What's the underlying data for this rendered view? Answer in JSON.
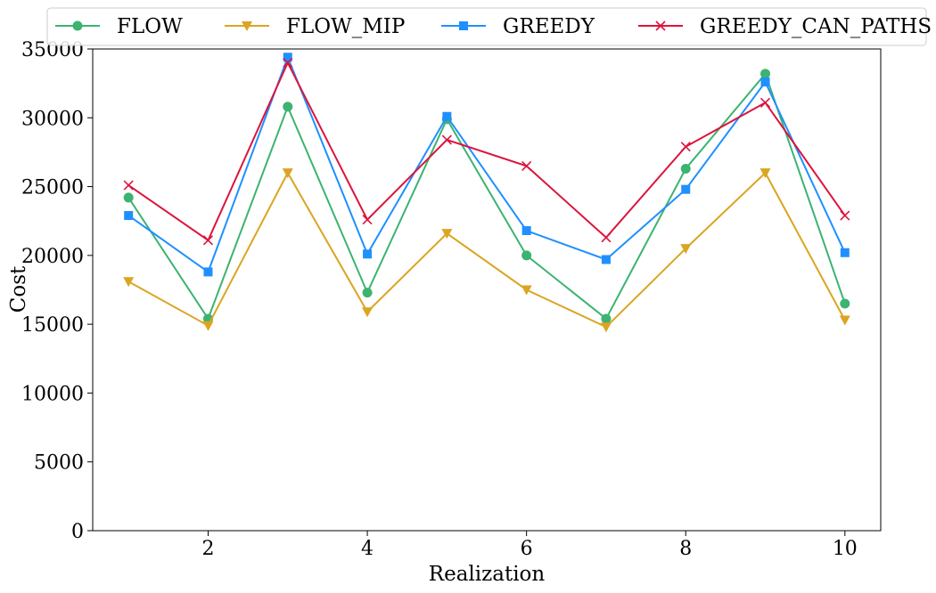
{
  "chart_data": {
    "type": "line",
    "title": "",
    "xlabel": "Realization",
    "ylabel": "Cost",
    "xlim": [
      0.55,
      10.45
    ],
    "ylim": [
      0,
      35000
    ],
    "xticks": [
      2,
      4,
      6,
      8,
      10
    ],
    "yticks": [
      0,
      5000,
      10000,
      15000,
      20000,
      25000,
      30000,
      35000
    ],
    "grid": false,
    "legend_position": "top",
    "x": [
      1,
      2,
      3,
      4,
      5,
      6,
      7,
      8,
      9,
      10
    ],
    "series": [
      {
        "name": "FLOW",
        "color": "#3cb371",
        "marker": "circle",
        "values": [
          24200,
          15400,
          30800,
          17300,
          29900,
          20000,
          15400,
          26300,
          33200,
          16500
        ]
      },
      {
        "name": "FLOW_MIP",
        "color": "#daa520",
        "marker": "triangle-down",
        "values": [
          18100,
          14900,
          26000,
          15900,
          21600,
          17500,
          14800,
          20500,
          26000,
          15300
        ]
      },
      {
        "name": "GREEDY",
        "color": "#1e90ff",
        "marker": "square",
        "values": [
          22900,
          18800,
          34400,
          20100,
          30100,
          21800,
          19700,
          24800,
          32600,
          20200
        ]
      },
      {
        "name": "GREEDY_CAN_PATHS",
        "color": "#dc143c",
        "marker": "x",
        "values": [
          25100,
          21100,
          34000,
          22600,
          28400,
          26500,
          21300,
          27900,
          31100,
          22900
        ]
      }
    ]
  }
}
